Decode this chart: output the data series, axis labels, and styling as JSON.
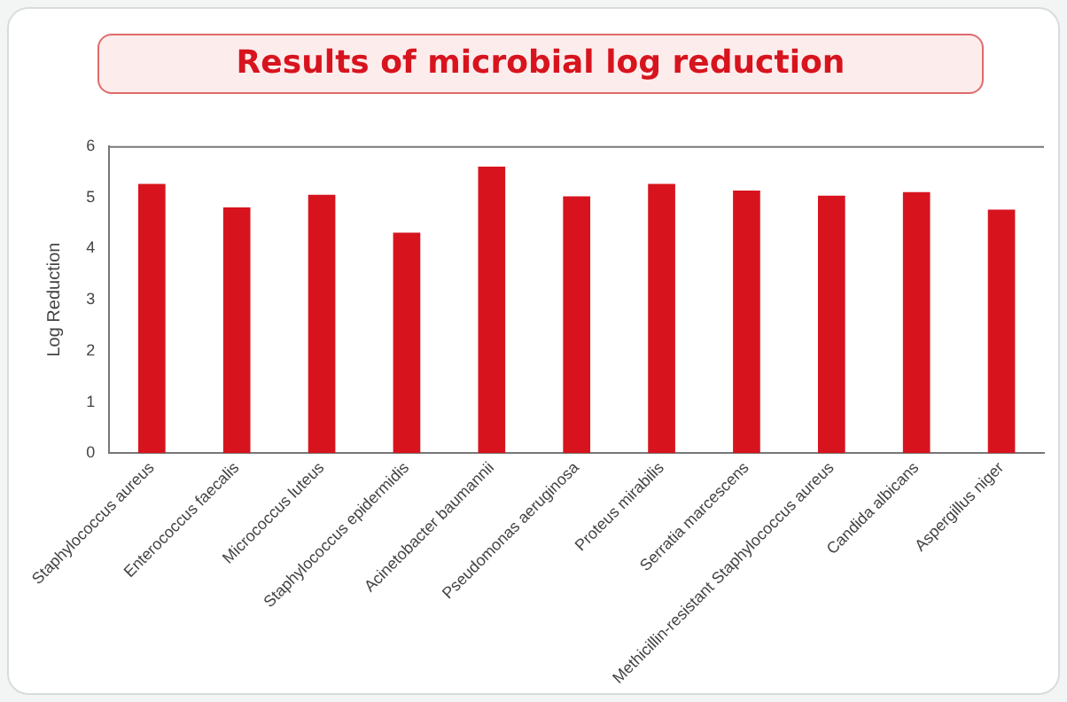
{
  "chart_data": {
    "type": "bar",
    "title": "Results of microbial log reduction",
    "ylabel": "Log Reduction",
    "categories": [
      "Staphylococcus aureus",
      "Enterococcus faecalis",
      "Micrococcus luteus",
      "Staphylococcus epidermidis",
      "Acinetobacter baumannii",
      "Pseudomonas aeruginosa",
      "Proteus mirabilis",
      "Serratia marcescens",
      "Methicillin-resistant Staphylococcus aureus",
      "Candida albicans",
      "Aspergillus niger"
    ],
    "values": [
      5.26,
      4.8,
      5.05,
      4.31,
      5.6,
      5.02,
      5.26,
      5.13,
      5.03,
      5.1,
      4.76
    ],
    "color": "#d7141e",
    "ylim": [
      0,
      6
    ],
    "yticks": [
      0,
      1,
      2,
      3,
      4,
      5,
      6
    ],
    "grid": false,
    "legend": false
  }
}
